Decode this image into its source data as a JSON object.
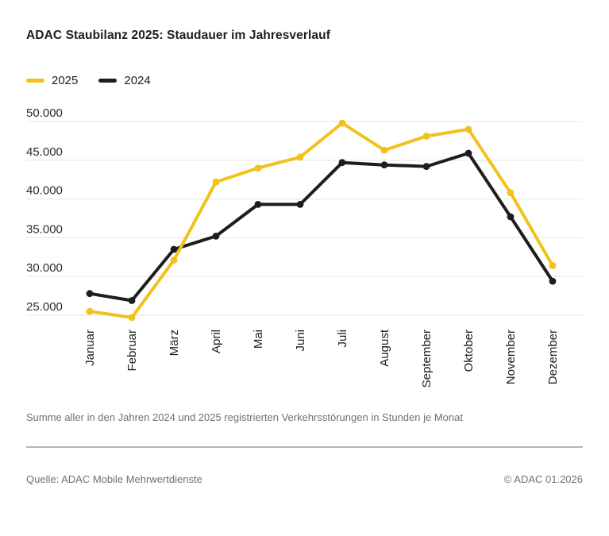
{
  "title": "ADAC Staubilanz 2025: Staudauer im Jahresverlauf",
  "caption": "Summe aller in den Jahren 2024 und 2025 registrierten Verkehrsstörungen in Stunden je Monat",
  "footer": {
    "source": "Quelle: ADAC Mobile Mehrwertdienste",
    "copyright": "© ADAC 01.2026"
  },
  "colors": {
    "accent_yellow": "#F1C21B",
    "line_black": "#1D1D1B",
    "grid": "#EBEBEB",
    "tick_text": "#2B2B2B",
    "axis_text": "#1D1D1B",
    "muted_text": "#707070",
    "divider": "#B5B5B5",
    "background": "#FFFFFF"
  },
  "chart_data": {
    "type": "line",
    "title": "ADAC Staubilanz 2025: Staudauer im Jahresverlauf",
    "categories": [
      "Januar",
      "Februar",
      "März",
      "April",
      "Mai",
      "Juni",
      "Juli",
      "August",
      "September",
      "Oktober",
      "November",
      "Dezember"
    ],
    "series": [
      {
        "name": "2025",
        "color": "#F1C21B",
        "values": [
          25500,
          24700,
          32100,
          42200,
          44000,
          45400,
          49800,
          46300,
          48100,
          49000,
          40800,
          31400
        ]
      },
      {
        "name": "2024",
        "color": "#1D1D1B",
        "values": [
          27800,
          26900,
          33500,
          35200,
          39300,
          39300,
          44700,
          44400,
          44200,
          45900,
          37700,
          29400
        ]
      }
    ],
    "yticks": [
      25000,
      30000,
      35000,
      40000,
      45000,
      50000
    ],
    "ytick_labels": [
      "25.000",
      "30.000",
      "35.000",
      "40.000",
      "45.000",
      "50.000"
    ],
    "ylim": [
      24000,
      51500
    ],
    "xlabel": "",
    "ylabel": "",
    "grid": true,
    "legend_position": "top-left",
    "unit_note": "Stunden je Monat"
  }
}
